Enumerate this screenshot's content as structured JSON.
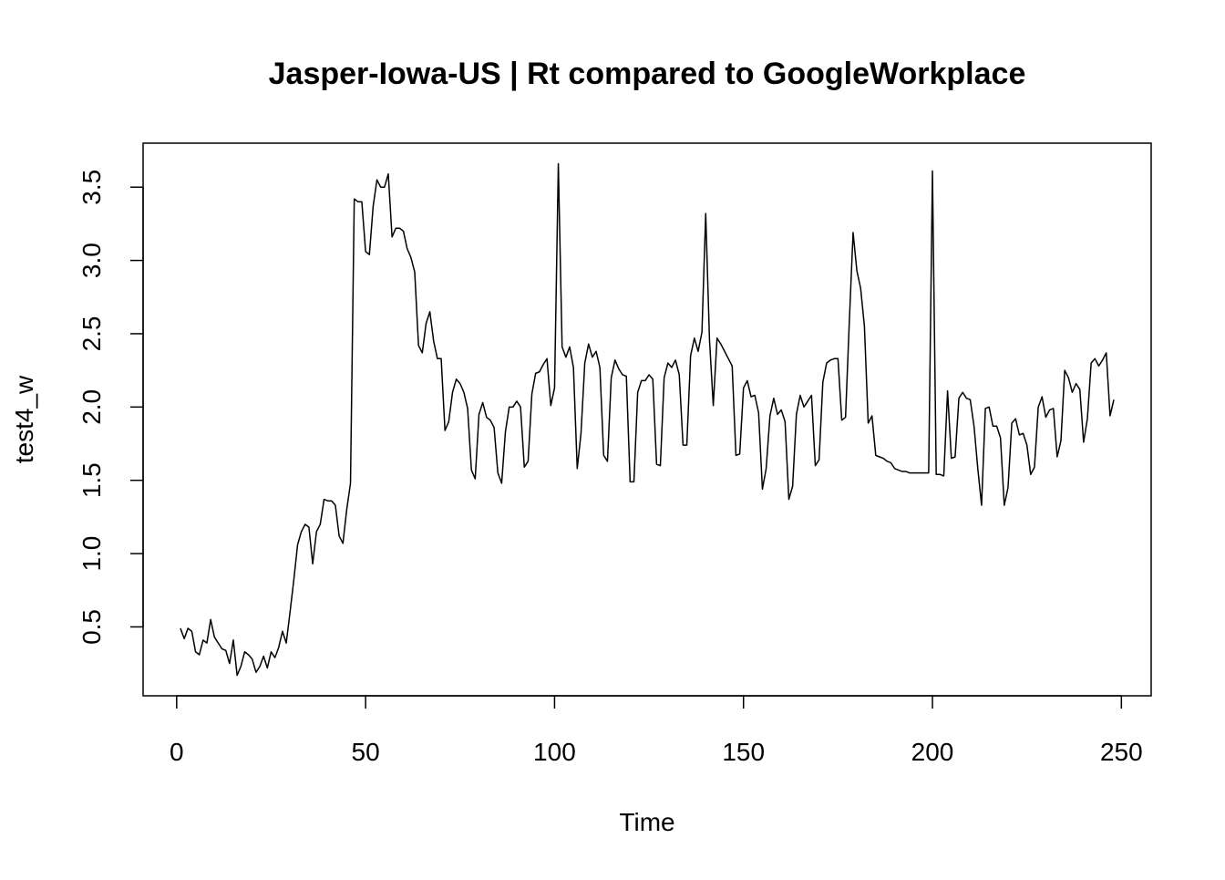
{
  "chart_data": {
    "type": "line",
    "title": "Jasper-Iowa-US | Rt compared to GoogleWorkplace",
    "x_label": "Time",
    "y_label": "test4_w",
    "x": [
      1,
      2,
      3,
      4,
      5,
      6,
      7,
      8,
      9,
      10,
      11,
      12,
      13,
      14,
      15,
      16,
      17,
      18,
      19,
      20,
      21,
      22,
      23,
      24,
      25,
      26,
      27,
      28,
      29,
      30,
      31,
      32,
      33,
      34,
      35,
      36,
      37,
      38,
      39,
      40,
      41,
      42,
      43,
      44,
      45,
      46,
      47,
      48,
      49,
      50,
      51,
      52,
      53,
      54,
      55,
      56,
      57,
      58,
      59,
      60,
      61,
      62,
      63,
      64,
      65,
      66,
      67,
      68,
      69,
      70,
      71,
      72,
      73,
      74,
      75,
      76,
      77,
      78,
      79,
      80,
      81,
      82,
      83,
      84,
      85,
      86,
      87,
      88,
      89,
      90,
      91,
      92,
      93,
      94,
      95,
      96,
      97,
      98,
      99,
      100,
      101,
      102,
      103,
      104,
      105,
      106,
      107,
      108,
      109,
      110,
      111,
      112,
      113,
      114,
      115,
      116,
      117,
      118,
      119,
      120,
      121,
      122,
      123,
      124,
      125,
      126,
      127,
      128,
      129,
      130,
      131,
      132,
      133,
      134,
      135,
      136,
      137,
      138,
      139,
      140,
      141,
      142,
      143,
      144,
      145,
      146,
      147,
      148,
      149,
      150,
      151,
      152,
      153,
      154,
      155,
      156,
      157,
      158,
      159,
      160,
      161,
      162,
      163,
      164,
      165,
      166,
      167,
      168,
      169,
      170,
      171,
      172,
      173,
      174,
      175,
      176,
      177,
      178,
      179,
      180,
      181,
      182,
      183,
      184,
      185,
      186,
      187,
      188,
      189,
      190,
      191,
      192,
      193,
      194,
      195,
      196,
      197,
      198,
      199,
      200,
      201,
      202,
      203,
      204,
      205,
      206,
      207,
      208,
      209,
      210,
      211,
      212,
      213,
      214,
      215,
      216,
      217,
      218,
      219,
      220,
      221,
      222,
      223,
      224,
      225,
      226,
      227,
      228,
      229,
      230,
      231,
      232,
      233,
      234,
      235,
      236,
      237,
      238,
      239,
      240,
      241,
      242,
      243,
      244,
      245,
      246,
      247,
      248
    ],
    "series": [
      {
        "name": "test4_w",
        "color": "#000000",
        "values": [
          0.49,
          0.42,
          0.49,
          0.47,
          0.33,
          0.31,
          0.41,
          0.39,
          0.55,
          0.43,
          0.39,
          0.35,
          0.34,
          0.25,
          0.41,
          0.17,
          0.23,
          0.33,
          0.31,
          0.28,
          0.19,
          0.23,
          0.3,
          0.22,
          0.33,
          0.29,
          0.36,
          0.47,
          0.39,
          0.6,
          0.82,
          1.06,
          1.15,
          1.2,
          1.18,
          0.93,
          1.15,
          1.2,
          1.37,
          1.36,
          1.36,
          1.33,
          1.12,
          1.07,
          1.3,
          1.48,
          3.42,
          3.4,
          3.4,
          3.06,
          3.04,
          3.37,
          3.55,
          3.5,
          3.5,
          3.59,
          3.16,
          3.22,
          3.22,
          3.2,
          3.08,
          3.02,
          2.92,
          2.42,
          2.37,
          2.57,
          2.65,
          2.45,
          2.33,
          2.33,
          1.84,
          1.9,
          2.1,
          2.19,
          2.16,
          2.1,
          1.99,
          1.57,
          1.51,
          1.95,
          2.03,
          1.93,
          1.91,
          1.86,
          1.55,
          1.48,
          1.83,
          2.0,
          2.0,
          2.04,
          2.0,
          1.59,
          1.63,
          2.09,
          2.23,
          2.24,
          2.29,
          2.33,
          2.01,
          2.13,
          3.66,
          2.41,
          2.34,
          2.41,
          2.27,
          1.58,
          1.82,
          2.3,
          2.43,
          2.34,
          2.38,
          2.27,
          1.67,
          1.63,
          2.2,
          2.32,
          2.26,
          2.22,
          2.21,
          1.49,
          1.49,
          2.1,
          2.18,
          2.18,
          2.22,
          2.19,
          1.61,
          1.6,
          2.2,
          2.3,
          2.27,
          2.32,
          2.22,
          1.74,
          1.74,
          2.35,
          2.47,
          2.38,
          2.51,
          3.32,
          2.46,
          2.01,
          2.47,
          2.43,
          2.38,
          2.33,
          2.28,
          1.67,
          1.68,
          2.13,
          2.18,
          2.07,
          2.08,
          1.96,
          1.44,
          1.58,
          1.94,
          2.06,
          1.95,
          1.98,
          1.9,
          1.37,
          1.46,
          1.95,
          2.08,
          2.0,
          2.04,
          2.08,
          1.6,
          1.64,
          2.17,
          2.3,
          2.32,
          2.33,
          2.33,
          1.91,
          1.93,
          2.58,
          3.19,
          2.93,
          2.81,
          2.55,
          1.89,
          1.94,
          1.67,
          1.66,
          1.65,
          1.63,
          1.62,
          1.58,
          1.57,
          1.56,
          1.56,
          1.55,
          1.55,
          1.55,
          1.55,
          1.55,
          1.55,
          3.61,
          1.54,
          1.54,
          1.53,
          2.11,
          1.65,
          1.66,
          2.06,
          2.1,
          2.06,
          2.05,
          1.87,
          1.58,
          1.33,
          1.99,
          2.0,
          1.87,
          1.87,
          1.79,
          1.33,
          1.45,
          1.89,
          1.92,
          1.81,
          1.82,
          1.74,
          1.54,
          1.59,
          2.0,
          2.07,
          1.93,
          1.98,
          1.99,
          1.66,
          1.77,
          2.25,
          2.2,
          2.1,
          2.16,
          2.12,
          1.76,
          1.92,
          2.3,
          2.33,
          2.28,
          2.32,
          2.37,
          1.94,
          2.05
        ]
      }
    ],
    "xlim": [
      -8.88,
      257.88
    ],
    "ylim": [
      0.03,
      3.8
    ],
    "xticks": [
      0,
      50,
      100,
      150,
      200,
      250
    ],
    "yticks": [
      0.5,
      {
        "value": 1,
        "label": "1.0"
      },
      1.5,
      {
        "value": 2,
        "label": "2.0"
      },
      2.5,
      {
        "value": 3,
        "label": "3.0"
      },
      3.5
    ]
  }
}
